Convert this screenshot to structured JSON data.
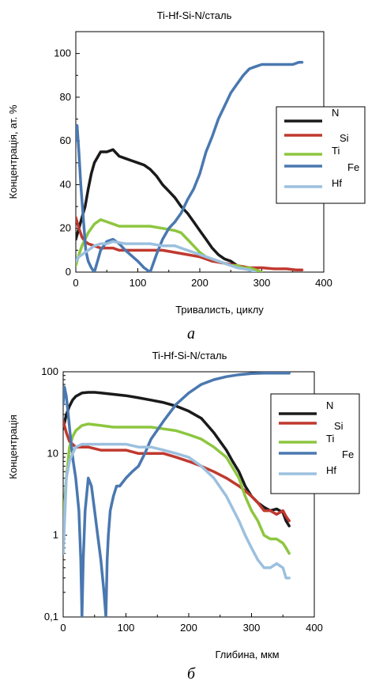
{
  "colors": {
    "N": "#1a1a1a",
    "Si": "#c0392f",
    "Ti": "#8dc63f",
    "Fe": "#4a78b0",
    "Hf": "#9cc0de",
    "axis": "#000000"
  },
  "chart_data": [
    {
      "type": "line",
      "title": "Ti-Hf-Si-N/сталь",
      "xlabel": "Тривалисть, циклу",
      "ylabel": "Концентрація, ат. %",
      "caption": "а",
      "xlim": [
        0,
        400
      ],
      "ylim": [
        0,
        110
      ],
      "yscale": "linear",
      "xticks": [
        "0",
        "100",
        "200",
        "300",
        "400"
      ],
      "yticks": [
        "0",
        "20",
        "40",
        "60",
        "80",
        "100"
      ],
      "legend_position": "right",
      "legend": [
        "N",
        "Si",
        "Ti",
        "Fe",
        "Hf"
      ],
      "series": [
        {
          "name": "N",
          "x": [
            0,
            5,
            10,
            15,
            20,
            25,
            30,
            40,
            50,
            60,
            70,
            80,
            90,
            100,
            110,
            120,
            130,
            140,
            150,
            160,
            170,
            180,
            190,
            200,
            210,
            220,
            230,
            240,
            250,
            260,
            270,
            280,
            290,
            300
          ],
          "y": [
            15,
            20,
            25,
            30,
            38,
            45,
            50,
            55,
            55,
            56,
            53,
            52,
            51,
            50,
            49,
            47,
            44,
            40,
            37,
            34,
            30,
            27,
            23,
            19,
            15,
            11,
            8,
            6,
            5,
            3,
            2,
            1,
            1,
            0
          ]
        },
        {
          "name": "Si",
          "x": [
            0,
            5,
            10,
            15,
            20,
            30,
            40,
            50,
            60,
            70,
            80,
            90,
            100,
            120,
            140,
            160,
            180,
            200,
            220,
            240,
            260,
            280,
            300,
            320,
            340,
            355,
            365
          ],
          "y": [
            25,
            20,
            16,
            14,
            13,
            12,
            11,
            11,
            11,
            10,
            10,
            10,
            10,
            10,
            10,
            9,
            8,
            7,
            5,
            4,
            3,
            2,
            2,
            1.5,
            1.5,
            1,
            1
          ]
        },
        {
          "name": "Ti",
          "x": [
            0,
            5,
            10,
            15,
            20,
            30,
            40,
            50,
            60,
            70,
            80,
            90,
            100,
            120,
            140,
            160,
            170,
            180,
            190,
            200,
            210,
            220,
            230,
            240,
            250,
            260,
            270,
            280,
            290,
            300
          ],
          "y": [
            3,
            8,
            12,
            15,
            18,
            22,
            24,
            23,
            22,
            21,
            21,
            21,
            21,
            21,
            20,
            19,
            18,
            15,
            12,
            9,
            7,
            6,
            5,
            4,
            3,
            3,
            2,
            2,
            1,
            0
          ]
        },
        {
          "name": "Fe",
          "x": [
            0,
            2,
            5,
            8,
            12,
            16,
            20,
            25,
            30,
            35,
            40,
            50,
            60,
            70,
            80,
            100,
            110,
            120,
            130,
            140,
            150,
            160,
            170,
            180,
            190,
            200,
            210,
            220,
            230,
            240,
            250,
            260,
            270,
            280,
            290,
            300,
            310,
            320,
            330,
            340,
            350,
            360,
            365
          ],
          "y": [
            60,
            67,
            55,
            40,
            25,
            10,
            5,
            2,
            0,
            5,
            10,
            14,
            15,
            13,
            10,
            5,
            2,
            0,
            8,
            15,
            20,
            23,
            27,
            33,
            38,
            45,
            55,
            62,
            70,
            76,
            82,
            86,
            90,
            93,
            94,
            95,
            95,
            95,
            95,
            95,
            95,
            96,
            96
          ]
        },
        {
          "name": "Hf",
          "x": [
            0,
            5,
            10,
            15,
            20,
            30,
            40,
            50,
            60,
            80,
            100,
            120,
            140,
            160,
            170,
            180,
            190,
            200,
            210,
            220,
            230,
            240,
            250,
            260,
            270,
            280,
            290
          ],
          "y": [
            5,
            7,
            8,
            9,
            10,
            12,
            13,
            13,
            14,
            13,
            13,
            13,
            12,
            12,
            11,
            10,
            9,
            8,
            7,
            6,
            5,
            4,
            3,
            2,
            1.5,
            1,
            0
          ]
        }
      ]
    },
    {
      "type": "line",
      "title": "Ti-Hf-Si-N/сталь",
      "xlabel": "Глибина, мкм",
      "ylabel": "Концентрація",
      "caption": "б",
      "xlim": [
        0,
        400
      ],
      "ylim": [
        0.1,
        100
      ],
      "yscale": "log",
      "xticks": [
        "0",
        "100",
        "200",
        "300",
        "400"
      ],
      "yticks": [
        "0,1",
        "1",
        "10",
        "100"
      ],
      "legend_position": "right",
      "legend": [
        "N",
        "Si",
        "Ti",
        "Fe",
        "Hf"
      ],
      "series": [
        {
          "name": "N",
          "x": [
            0,
            5,
            10,
            15,
            20,
            30,
            40,
            50,
            60,
            80,
            100,
            120,
            140,
            160,
            180,
            200,
            220,
            230,
            240,
            250,
            260,
            270,
            280,
            290,
            300,
            310,
            320,
            330,
            340,
            350,
            355,
            360
          ],
          "y": [
            20,
            30,
            38,
            45,
            50,
            55,
            56,
            56,
            55,
            53,
            51,
            48,
            45,
            42,
            38,
            33,
            27,
            22,
            18,
            14,
            11,
            8,
            6,
            4,
            3,
            2.5,
            2.2,
            2,
            2.1,
            1.9,
            1.5,
            1.3
          ]
        },
        {
          "name": "Si",
          "x": [
            0,
            5,
            10,
            15,
            20,
            30,
            40,
            60,
            80,
            100,
            120,
            140,
            160,
            180,
            200,
            220,
            240,
            260,
            280,
            290,
            300,
            310,
            320,
            330,
            340,
            350,
            355,
            360
          ],
          "y": [
            25,
            18,
            14,
            13,
            12,
            12,
            12,
            11,
            11,
            11,
            10,
            10,
            10,
            9,
            8,
            7,
            6,
            5,
            4,
            3.5,
            3,
            2.5,
            2,
            2,
            1.8,
            2,
            1.7,
            1.5
          ]
        },
        {
          "name": "Ti",
          "x": [
            0,
            5,
            10,
            15,
            20,
            30,
            40,
            60,
            80,
            100,
            120,
            140,
            160,
            180,
            200,
            220,
            240,
            260,
            280,
            290,
            300,
            310,
            320,
            330,
            340,
            350,
            355,
            360
          ],
          "y": [
            1.5,
            5,
            12,
            16,
            19,
            22,
            23,
            22,
            21,
            21,
            21,
            21,
            20,
            19,
            17,
            15,
            12,
            9,
            5,
            3,
            2,
            1.5,
            1,
            0.9,
            0.9,
            0.8,
            0.7,
            0.6
          ]
        },
        {
          "name": "Fe",
          "x": [
            0,
            2,
            5,
            8,
            12,
            16,
            20,
            25,
            28,
            30,
            32,
            35,
            40,
            45,
            50,
            55,
            60,
            65,
            68,
            70,
            72,
            75,
            80,
            85,
            90,
            100,
            110,
            120,
            130,
            140,
            160,
            180,
            200,
            220,
            240,
            260,
            280,
            300,
            320,
            340,
            360
          ],
          "y": [
            40,
            65,
            50,
            30,
            15,
            8,
            5,
            2,
            0.5,
            0.1,
            0.5,
            2,
            5,
            4,
            2,
            1,
            0.5,
            0.2,
            0.1,
            0.5,
            1,
            2,
            3,
            4,
            4,
            5,
            6,
            7,
            10,
            15,
            25,
            40,
            55,
            70,
            80,
            87,
            92,
            95,
            96,
            96,
            96
          ]
        },
        {
          "name": "Hf",
          "x": [
            0,
            3,
            5,
            10,
            15,
            20,
            30,
            40,
            60,
            80,
            100,
            120,
            140,
            160,
            180,
            200,
            220,
            240,
            260,
            280,
            290,
            300,
            310,
            320,
            330,
            340,
            350,
            355,
            360
          ],
          "y": [
            0.6,
            2,
            5,
            8,
            10,
            12,
            13,
            13,
            13,
            13,
            13,
            12,
            12,
            11,
            10,
            9,
            7,
            5,
            3,
            1.5,
            1,
            0.7,
            0.5,
            0.4,
            0.4,
            0.45,
            0.4,
            0.3,
            0.3
          ]
        }
      ]
    }
  ]
}
